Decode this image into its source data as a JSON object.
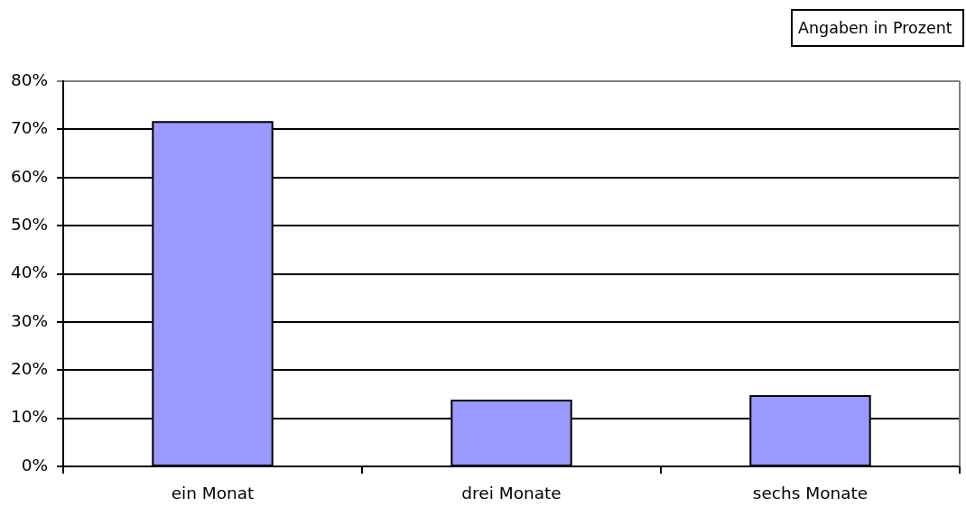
{
  "chart_data": {
    "type": "bar",
    "categories": [
      "ein Monat",
      "drei Monate",
      "sechs Monate"
    ],
    "values": [
      71.5,
      13.7,
      14.6
    ],
    "color": "#9999ff",
    "ylim": [
      0,
      80
    ],
    "yticks": [
      {
        "value": 0,
        "label": "0%"
      },
      {
        "value": 10,
        "label": "10%"
      },
      {
        "value": 20,
        "label": "20%"
      },
      {
        "value": 30,
        "label": "30%"
      },
      {
        "value": 40,
        "label": "40%"
      },
      {
        "value": 50,
        "label": "50%"
      },
      {
        "value": 60,
        "label": "60%"
      },
      {
        "value": 70,
        "label": "70%"
      },
      {
        "value": 80,
        "label": "80%"
      }
    ],
    "grid": "y",
    "annotations": [
      "Angaben in Prozent"
    ]
  }
}
